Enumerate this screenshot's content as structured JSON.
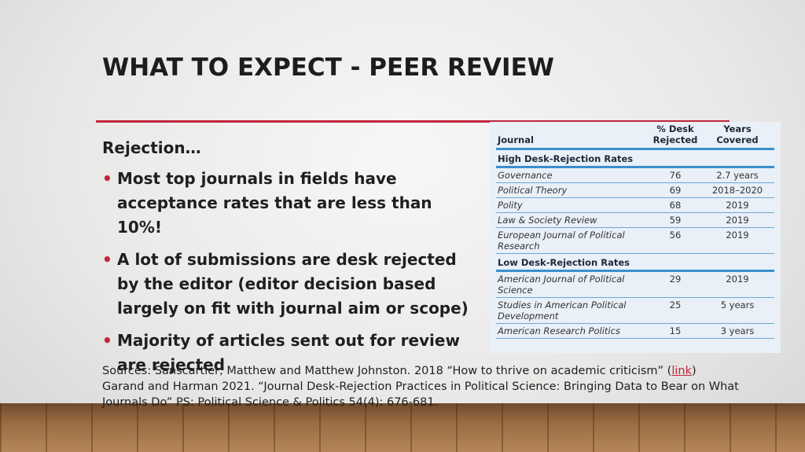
{
  "title": "WHAT TO EXPECT - PEER REVIEW",
  "body": {
    "heading": "Rejection…",
    "bullets": [
      "Most top journals in fields have acceptance rates that are less than 10%!",
      "A lot of submissions are desk rejected by the editor (editor decision based largely on fit with journal aim or scope)",
      "Majority of articles sent out for review are rejected"
    ]
  },
  "table": {
    "headers": [
      "Journal",
      "% Desk Rejected",
      "Years Covered"
    ],
    "sections": [
      {
        "label": "High Desk-Rejection Rates",
        "rows": [
          [
            "Governance",
            "76",
            "2.7 years"
          ],
          [
            "Political Theory",
            "69",
            "2018–2020"
          ],
          [
            "Polity",
            "68",
            "2019"
          ],
          [
            "Law & Society Review",
            "59",
            "2019"
          ],
          [
            "European Journal of Political Research",
            "56",
            "2019"
          ]
        ]
      },
      {
        "label": "Low Desk-Rejection Rates",
        "rows": [
          [
            "American Journal of Political Science",
            "29",
            "2019"
          ],
          [
            "Studies in American Political Development",
            "25",
            "5 years"
          ],
          [
            "American Research Politics",
            "15",
            "3 years"
          ]
        ]
      }
    ]
  },
  "sources": {
    "line1": "Sources: Sanscartier, Matthew and Matthew Johnston. 2018 “How to thrive on academic criticism” (",
    "link": "link",
    "line1_end": ")",
    "line2": "Garand and Harman 2021. “Journal Desk-Rejection Practices in Political Science: Bringing Data to Bear on What Journals Do” PS: Political Science & Politics 54(4): 676-681."
  }
}
